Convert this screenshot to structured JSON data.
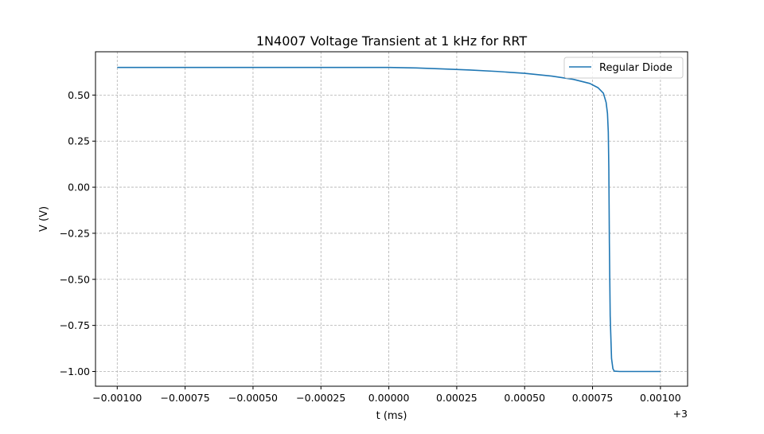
{
  "chart_data": {
    "type": "line",
    "title": "1N4007 Voltage Transient at 1 kHz for RRT",
    "xlabel": "t (ms)",
    "ylabel": "V (V)",
    "x_offset_label": "+3",
    "xlim": [
      -0.00108,
      0.0011
    ],
    "ylim": [
      -1.08,
      0.735
    ],
    "xticks": [
      -0.001,
      -0.00075,
      -0.0005,
      -0.00025,
      0.0,
      0.00025,
      0.0005,
      0.00075,
      0.001
    ],
    "xtick_labels": [
      "−0.00100",
      "−0.00075",
      "−0.00050",
      "−0.00025",
      "0.00000",
      "0.00025",
      "0.00050",
      "0.00075",
      "0.00100"
    ],
    "yticks": [
      0.5,
      0.25,
      0.0,
      -0.25,
      -0.5,
      -0.75,
      -1.0
    ],
    "ytick_labels": [
      "0.50",
      "0.25",
      "0.00",
      "−0.25",
      "−0.50",
      "−0.75",
      "−1.00"
    ],
    "grid": true,
    "legend_position": "top-right",
    "series": [
      {
        "name": "Regular Diode",
        "color": "#1f77b4",
        "points": [
          [
            -0.001,
            0.65
          ],
          [
            0.0,
            0.65
          ],
          [
            0.0001,
            0.647
          ],
          [
            0.0002,
            0.642
          ],
          [
            0.0003,
            0.636
          ],
          [
            0.0004,
            0.628
          ],
          [
            0.0005,
            0.618
          ],
          [
            0.0006,
            0.603
          ],
          [
            0.00068,
            0.585
          ],
          [
            0.00074,
            0.563
          ],
          [
            0.00077,
            0.54
          ],
          [
            0.00079,
            0.51
          ],
          [
            0.0008,
            0.46
          ],
          [
            0.000805,
            0.4
          ],
          [
            0.000808,
            0.3
          ],
          [
            0.00081,
            0.1
          ],
          [
            0.000812,
            -0.3
          ],
          [
            0.000815,
            -0.7
          ],
          [
            0.00082,
            -0.93
          ],
          [
            0.000825,
            -0.985
          ],
          [
            0.00083,
            -0.998
          ],
          [
            0.00085,
            -1.0
          ],
          [
            0.001,
            -1.0
          ]
        ]
      }
    ]
  }
}
